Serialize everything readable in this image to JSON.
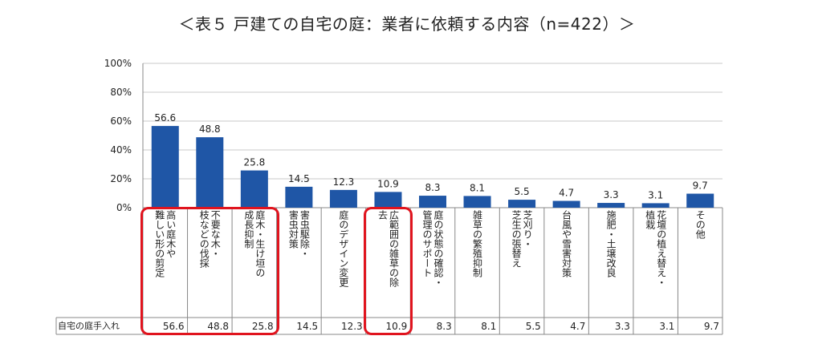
{
  "title": "＜表５ 戸建ての自宅の庭：業者に依頼する内容（n=422）＞",
  "chart_data": {
    "type": "bar",
    "title": "＜表５ 戸建ての自宅の庭：業者に依頼する内容（n=422）＞",
    "categories": [
      "高い庭木や\n難しい形の剪定",
      "不要な木・\n枝などの伐採",
      "庭木・生け垣の\n成長抑制",
      "害虫駆除・\n害虫対策",
      "庭のデザイン変更",
      "広範囲の雑草の除\n去",
      "庭の状態の確認・\n管理のサポート",
      "雑草の繁殖抑制",
      "芝刈り・\n芝生の張替え",
      "台風や雪害対策",
      "施肥・土壌改良",
      "花壇の植え替え・\n植栽",
      "その他"
    ],
    "values": [
      56.6,
      48.8,
      25.8,
      14.5,
      12.3,
      10.9,
      8.3,
      8.1,
      5.5,
      4.7,
      3.3,
      3.1,
      9.7
    ],
    "yticks": [
      "0%",
      "20%",
      "40%",
      "60%",
      "80%",
      "100%"
    ],
    "ylim": [
      0,
      100
    ],
    "bar_color": "#1f56a6",
    "highlight_color": "#e0141e",
    "highlighted": [
      0,
      1,
      2,
      5
    ],
    "table_row_label": "自宅の庭手入れ"
  }
}
